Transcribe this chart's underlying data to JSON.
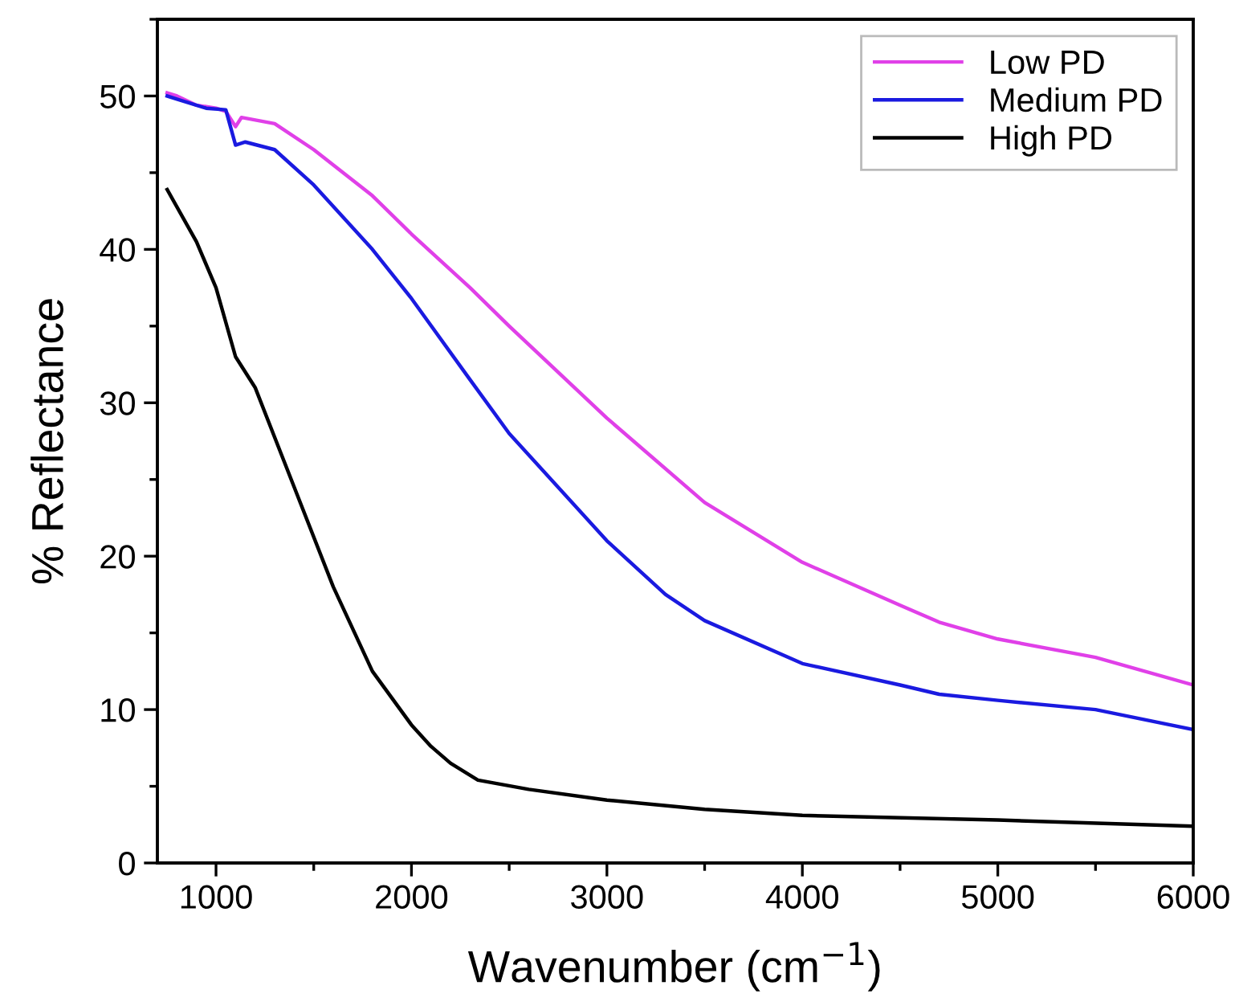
{
  "chart_data": {
    "type": "line",
    "xlabel": "Wavenumber (cm$^{−1}$)",
    "ylabel": "% Reflectance",
    "xlim": [
      700,
      6000
    ],
    "xticks": [
      1000,
      2000,
      3000,
      4000,
      5000,
      6000
    ],
    "ylim": [
      0,
      55
    ],
    "yticks": [
      0,
      10,
      20,
      30,
      40,
      50
    ],
    "grid": false,
    "legend": "top right",
    "marker": "none",
    "line_style": "solid",
    "series": [
      {
        "name": "Low PD",
        "color": "#e040e8",
        "x": [
          750,
          800,
          900,
          1000,
          1050,
          1100,
          1130,
          1300,
          1500,
          1800,
          2000,
          2300,
          2500,
          3000,
          3500,
          4000,
          4500,
          4700,
          5000,
          5500,
          6000
        ],
        "values": [
          50.2,
          50.0,
          49.4,
          49.2,
          49.0,
          48.0,
          48.6,
          48.2,
          46.5,
          43.5,
          41.0,
          37.5,
          35.0,
          29.0,
          23.5,
          19.6,
          16.8,
          15.7,
          14.6,
          13.4,
          11.6
        ]
      },
      {
        "name": "Medium PD",
        "color": "#1a1ae0",
        "x": [
          750,
          800,
          950,
          1050,
          1100,
          1150,
          1300,
          1500,
          1800,
          2000,
          2300,
          2500,
          3000,
          3300,
          3500,
          4000,
          4500,
          4700,
          5000,
          5500,
          6000
        ],
        "values": [
          50.0,
          49.8,
          49.2,
          49.1,
          46.8,
          47.0,
          46.5,
          44.2,
          40.0,
          36.8,
          31.5,
          28.0,
          21.0,
          17.5,
          15.8,
          13.0,
          11.6,
          11.0,
          10.6,
          10.0,
          8.7
        ]
      },
      {
        "name": "High PD",
        "color": "#000000",
        "x": [
          750,
          900,
          1000,
          1100,
          1200,
          1400,
          1600,
          1800,
          2000,
          2100,
          2200,
          2340,
          2600,
          3000,
          3500,
          4000,
          5000,
          6000
        ],
        "values": [
          43.9,
          40.5,
          37.5,
          33.0,
          31.0,
          24.5,
          18.0,
          12.5,
          9.0,
          7.6,
          6.5,
          5.4,
          4.8,
          4.1,
          3.5,
          3.1,
          2.8,
          2.4
        ]
      }
    ]
  }
}
